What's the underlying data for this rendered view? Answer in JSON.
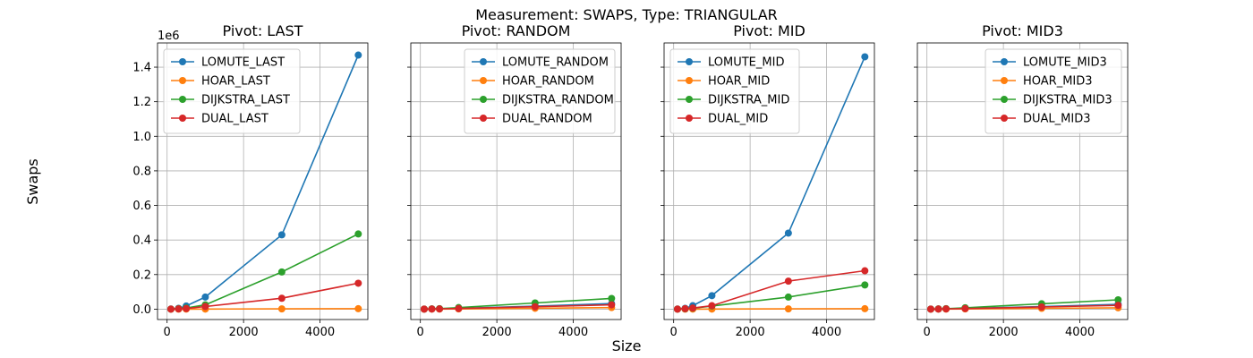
{
  "figure": {
    "suptitle": "Measurement: SWAPS, Type: TRIANGULAR",
    "xlabel": "Size",
    "ylabel": "Swaps",
    "y_offset_label": "1e6"
  },
  "chart_data": [
    {
      "type": "line",
      "title": "Pivot: LAST",
      "legend_position": "top-left",
      "grid": true,
      "x": [
        100,
        300,
        500,
        1000,
        3000,
        5000
      ],
      "xlim": [
        -250,
        5250
      ],
      "ylim": [
        -60000,
        1540000
      ],
      "xticks": [
        0,
        2000,
        4000
      ],
      "yticks": [
        0,
        200000,
        400000,
        600000,
        800000,
        1000000,
        1200000,
        1400000
      ],
      "ytick_labels": [
        "0.0",
        "0.2",
        "0.4",
        "0.6",
        "0.8",
        "1.0",
        "1.2",
        "1.4"
      ],
      "series": [
        {
          "name": "LOMUTE_LAST",
          "color": "#1f77b4",
          "values": [
            600,
            5000,
            18000,
            70000,
            430000,
            1470000
          ]
        },
        {
          "name": "HOAR_LAST",
          "color": "#ff7f0e",
          "values": [
            100,
            200,
            300,
            500,
            1500,
            2500
          ]
        },
        {
          "name": "DIJKSTRA_LAST",
          "color": "#2ca02c",
          "values": [
            300,
            2500,
            6500,
            25000,
            215000,
            435000
          ]
        },
        {
          "name": "DUAL_LAST",
          "color": "#d62728",
          "values": [
            200,
            1500,
            3500,
            15000,
            63000,
            150000
          ]
        }
      ]
    },
    {
      "type": "line",
      "title": "Pivot: RANDOM",
      "legend_position": "top-right",
      "grid": true,
      "x": [
        100,
        300,
        500,
        1000,
        3000,
        5000
      ],
      "xlim": [
        -250,
        5250
      ],
      "ylim": [
        -60000,
        1540000
      ],
      "xticks": [
        0,
        2000,
        4000
      ],
      "yticks": [
        0,
        200000,
        400000,
        600000,
        800000,
        1000000,
        1200000,
        1400000
      ],
      "series": [
        {
          "name": "LOMUTE_RANDOM",
          "color": "#1f77b4",
          "values": [
            300,
            1000,
            1800,
            4500,
            17000,
            32000
          ]
        },
        {
          "name": "HOAR_RANDOM",
          "color": "#ff7f0e",
          "values": [
            100,
            300,
            500,
            1200,
            5000,
            9000
          ]
        },
        {
          "name": "DIJKSTRA_RANDOM",
          "color": "#2ca02c",
          "values": [
            500,
            1800,
            3000,
            9000,
            36000,
            62000
          ]
        },
        {
          "name": "DUAL_RANDOM",
          "color": "#d62728",
          "values": [
            200,
            800,
            1400,
            3500,
            14000,
            25000
          ]
        }
      ]
    },
    {
      "type": "line",
      "title": "Pivot: MID",
      "legend_position": "top-left",
      "grid": true,
      "x": [
        100,
        300,
        500,
        1000,
        3000,
        5000
      ],
      "xlim": [
        -250,
        5250
      ],
      "ylim": [
        -60000,
        1540000
      ],
      "xticks": [
        0,
        2000,
        4000
      ],
      "yticks": [
        0,
        200000,
        400000,
        600000,
        800000,
        1000000,
        1200000,
        1400000
      ],
      "series": [
        {
          "name": "LOMUTE_MID",
          "color": "#1f77b4",
          "values": [
            600,
            5000,
            20000,
            78000,
            440000,
            1460000
          ]
        },
        {
          "name": "HOAR_MID",
          "color": "#ff7f0e",
          "values": [
            100,
            200,
            300,
            500,
            1500,
            2500
          ]
        },
        {
          "name": "DIJKSTRA_MID",
          "color": "#2ca02c",
          "values": [
            300,
            2000,
            5500,
            18000,
            70000,
            140000
          ]
        },
        {
          "name": "DUAL_MID",
          "color": "#d62728",
          "values": [
            200,
            2500,
            6500,
            20000,
            162000,
            222000
          ]
        }
      ]
    },
    {
      "type": "line",
      "title": "Pivot: MID3",
      "legend_position": "top-right",
      "grid": true,
      "x": [
        100,
        300,
        500,
        1000,
        3000,
        5000
      ],
      "xlim": [
        -250,
        5250
      ],
      "ylim": [
        -60000,
        1540000
      ],
      "xticks": [
        0,
        2000,
        4000
      ],
      "yticks": [
        0,
        200000,
        400000,
        600000,
        800000,
        1000000,
        1200000,
        1400000
      ],
      "series": [
        {
          "name": "LOMUTE_MID3",
          "color": "#1f77b4",
          "values": [
            300,
            900,
            1600,
            4000,
            15000,
            28000
          ]
        },
        {
          "name": "HOAR_MID3",
          "color": "#ff7f0e",
          "values": [
            100,
            300,
            500,
            1200,
            4500,
            8000
          ]
        },
        {
          "name": "DIJKSTRA_MID3",
          "color": "#2ca02c",
          "values": [
            500,
            1700,
            2800,
            8000,
            31000,
            54000
          ]
        },
        {
          "name": "DUAL_MID3",
          "color": "#d62728",
          "values": [
            200,
            700,
            1300,
            3200,
            12500,
            22000
          ]
        }
      ]
    }
  ]
}
